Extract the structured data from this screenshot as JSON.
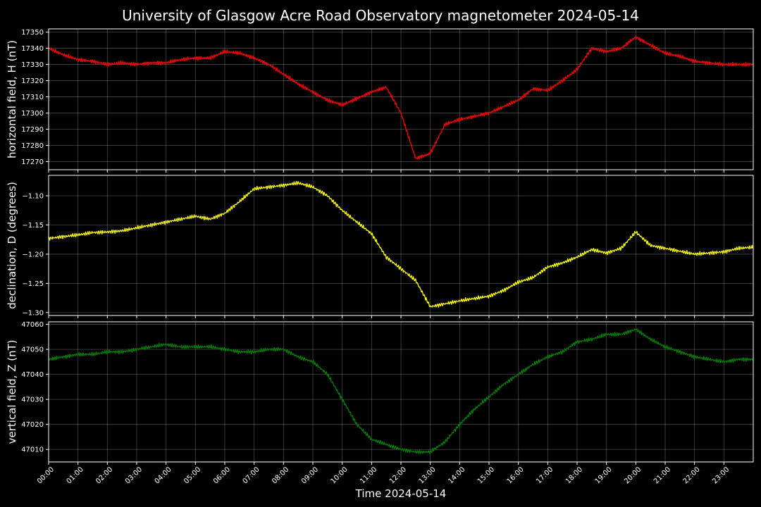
{
  "chart_data": {
    "type": "line",
    "title": "University of Glasgow Acre Road Observatory magnetometer 2024-05-14",
    "xlabel": "Time 2024-05-14",
    "xlim": [
      "00:00",
      "24:00"
    ],
    "x_ticks": [
      "00:00",
      "01:00",
      "02:00",
      "03:00",
      "04:00",
      "05:00",
      "06:00",
      "07:00",
      "08:00",
      "09:00",
      "10:00",
      "11:00",
      "12:00",
      "13:00",
      "14:00",
      "15:00",
      "16:00",
      "17:00",
      "18:00",
      "19:00",
      "20:00",
      "21:00",
      "22:00",
      "23:00"
    ],
    "grid": true,
    "background": "#000000",
    "x_hours": [
      0,
      0.5,
      1,
      1.5,
      2,
      2.5,
      3,
      3.5,
      4,
      4.5,
      5,
      5.5,
      6,
      6.5,
      7,
      7.5,
      8,
      8.5,
      9,
      9.5,
      10,
      10.5,
      11,
      11.5,
      12,
      12.5,
      13,
      13.5,
      14,
      14.5,
      15,
      15.5,
      16,
      16.5,
      17,
      17.5,
      18,
      18.5,
      19,
      19.5,
      20,
      20.5,
      21,
      21.5,
      22,
      22.5,
      23,
      23.5,
      24
    ],
    "panels": [
      {
        "series_name": "H",
        "ylabel": "horizontal field, H (nT)",
        "color": "#ff0000",
        "ylim": [
          17265,
          17352
        ],
        "y_ticks": [
          "17270",
          "17280",
          "17290",
          "17300",
          "17310",
          "17320",
          "17330",
          "17340",
          "17350"
        ],
        "values": [
          17340,
          17336,
          17333,
          17332,
          17330,
          17331,
          17330,
          17331,
          17331,
          17333,
          17334,
          17334,
          17338,
          17337,
          17334,
          17330,
          17324,
          17318,
          17313,
          17308,
          17305,
          17309,
          17313,
          17316,
          17300,
          17272,
          17275,
          17293,
          17296,
          17298,
          17300,
          17304,
          17308,
          17315,
          17314,
          17320,
          17327,
          17340,
          17338,
          17340,
          17347,
          17342,
          17337,
          17335,
          17332,
          17331,
          17330,
          17330,
          17330
        ]
      },
      {
        "series_name": "D",
        "ylabel": "declination, D (degrees)",
        "color": "#ffff00",
        "ylim": [
          -1.305,
          -1.065
        ],
        "y_ticks": [
          "−1.10",
          "−1.15",
          "−1.20",
          "−1.25",
          "−1.30"
        ],
        "y_tick_values": [
          -1.1,
          -1.15,
          -1.2,
          -1.25,
          -1.3
        ],
        "values": [
          -1.173,
          -1.17,
          -1.167,
          -1.163,
          -1.162,
          -1.16,
          -1.155,
          -1.15,
          -1.145,
          -1.14,
          -1.135,
          -1.14,
          -1.13,
          -1.11,
          -1.088,
          -1.085,
          -1.082,
          -1.078,
          -1.085,
          -1.1,
          -1.125,
          -1.145,
          -1.165,
          -1.205,
          -1.225,
          -1.245,
          -1.29,
          -1.285,
          -1.28,
          -1.276,
          -1.272,
          -1.262,
          -1.248,
          -1.24,
          -1.222,
          -1.215,
          -1.205,
          -1.192,
          -1.198,
          -1.19,
          -1.162,
          -1.185,
          -1.19,
          -1.195,
          -1.2,
          -1.198,
          -1.196,
          -1.19,
          -1.188
        ]
      },
      {
        "series_name": "Z",
        "ylabel": "vertical field, Z (nT)",
        "color": "#008000",
        "ylim": [
          47005,
          47061
        ],
        "y_ticks": [
          "47010",
          "47020",
          "47030",
          "47040",
          "47050",
          "47060"
        ],
        "values": [
          47046,
          47047,
          47048,
          47048,
          47049,
          47049,
          47050,
          47051,
          47052,
          47051,
          47051,
          47051,
          47050,
          47049,
          47049,
          47050,
          47050,
          47047,
          47045,
          47040,
          47030,
          47020,
          47014,
          47012,
          47010,
          47009,
          47009,
          47013,
          47020,
          47026,
          47031,
          47036,
          47040,
          47044,
          47047,
          47049,
          47053,
          47054,
          47056,
          47056,
          47058,
          47054,
          47051,
          47049,
          47047,
          47046,
          47045,
          47046,
          47046
        ]
      }
    ]
  }
}
